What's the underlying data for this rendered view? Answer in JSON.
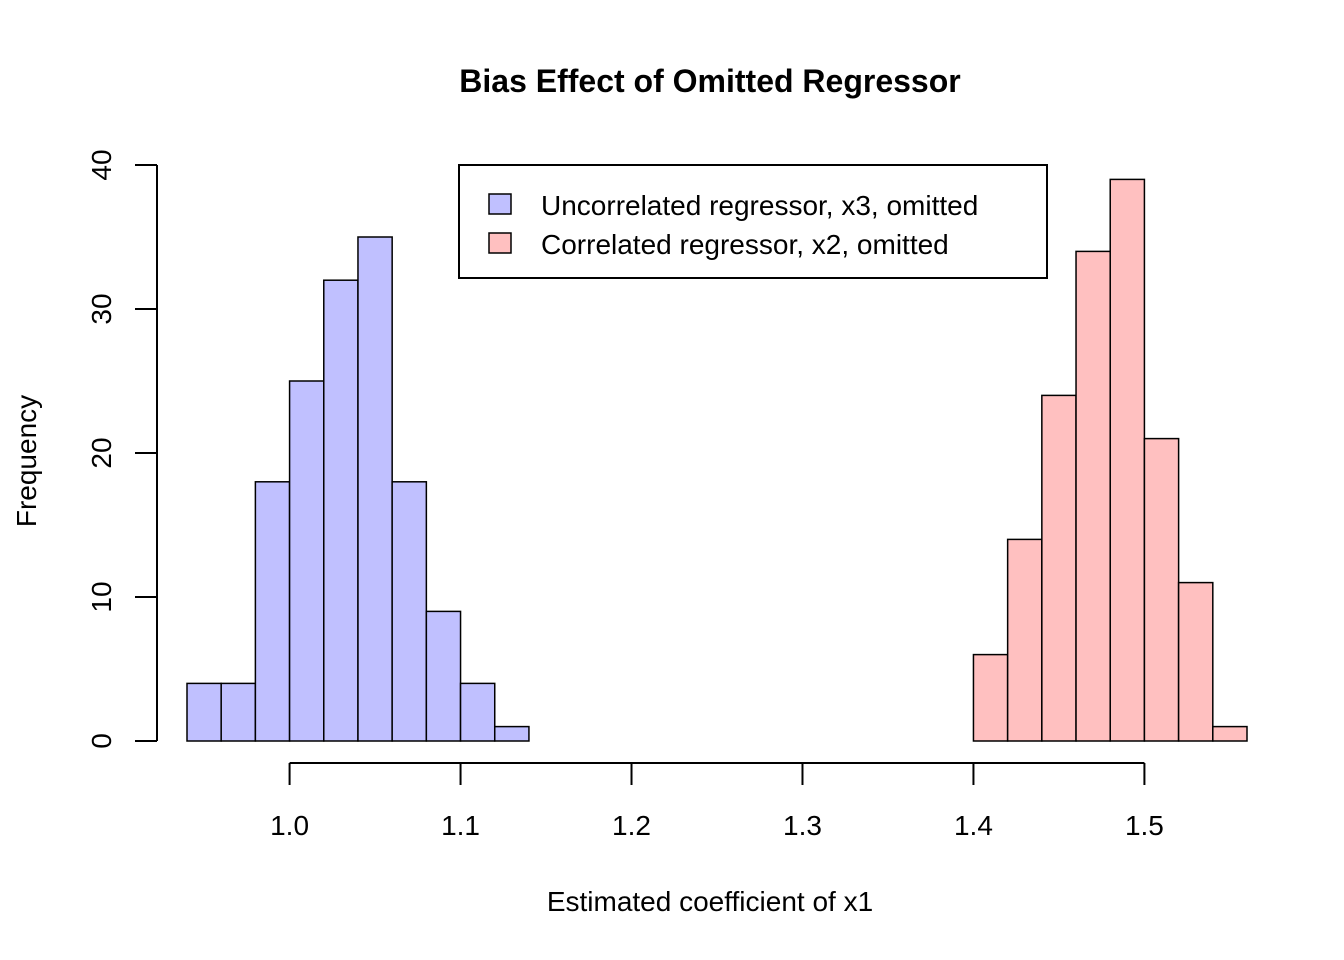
{
  "chart_data": {
    "type": "bar",
    "title": "Bias Effect of Omitted Regressor",
    "xlabel": "Estimated coefficient of x1",
    "ylabel": "Frequency",
    "xlim": [
      0.94,
      1.56
    ],
    "ylim": [
      0,
      40
    ],
    "x_ticks": [
      "1.0",
      "1.1",
      "1.2",
      "1.3",
      "1.4",
      "1.5"
    ],
    "y_ticks": [
      "0",
      "10",
      "20",
      "30",
      "40"
    ],
    "bin_width": 0.02,
    "grid": false,
    "legend_position": "top-center",
    "series": [
      {
        "name": "Uncorrelated regressor, x3, omitted",
        "color": "#c0c0ff",
        "bin_starts": [
          0.94,
          0.96,
          0.98,
          1.0,
          1.02,
          1.04,
          1.06,
          1.08,
          1.1,
          1.12
        ],
        "counts": [
          4,
          4,
          18,
          25,
          32,
          35,
          18,
          9,
          4,
          1
        ]
      },
      {
        "name": "Correlated regressor, x2, omitted",
        "color": "#ffc0c0",
        "bin_starts": [
          1.4,
          1.42,
          1.44,
          1.46,
          1.48,
          1.5,
          1.52,
          1.54
        ],
        "counts": [
          6,
          14,
          24,
          34,
          39,
          21,
          11,
          1
        ]
      }
    ]
  }
}
